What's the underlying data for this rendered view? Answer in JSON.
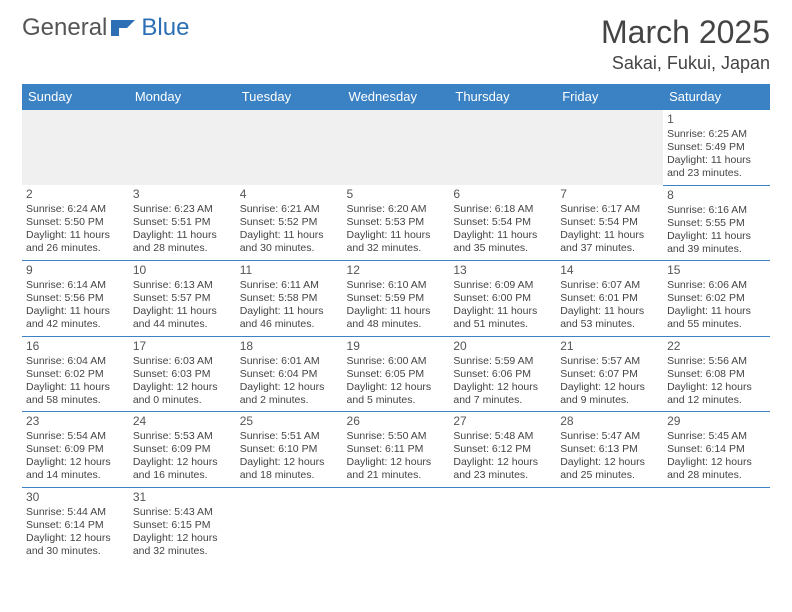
{
  "logo": {
    "general": "General",
    "blue": "Blue"
  },
  "title": "March 2025",
  "location": "Sakai, Fukui, Japan",
  "header_bg": "#3b82c4",
  "days_of_week": [
    "Sunday",
    "Monday",
    "Tuesday",
    "Wednesday",
    "Thursday",
    "Friday",
    "Saturday"
  ],
  "cells": [
    {
      "n": "",
      "blank": true
    },
    {
      "n": "",
      "blank": true
    },
    {
      "n": "",
      "blank": true
    },
    {
      "n": "",
      "blank": true
    },
    {
      "n": "",
      "blank": true
    },
    {
      "n": "",
      "blank": true
    },
    {
      "n": "1",
      "sr": "Sunrise: 6:25 AM",
      "ss": "Sunset: 5:49 PM",
      "d1": "Daylight: 11 hours",
      "d2": "and 23 minutes."
    },
    {
      "n": "2",
      "sr": "Sunrise: 6:24 AM",
      "ss": "Sunset: 5:50 PM",
      "d1": "Daylight: 11 hours",
      "d2": "and 26 minutes."
    },
    {
      "n": "3",
      "sr": "Sunrise: 6:23 AM",
      "ss": "Sunset: 5:51 PM",
      "d1": "Daylight: 11 hours",
      "d2": "and 28 minutes."
    },
    {
      "n": "4",
      "sr": "Sunrise: 6:21 AM",
      "ss": "Sunset: 5:52 PM",
      "d1": "Daylight: 11 hours",
      "d2": "and 30 minutes."
    },
    {
      "n": "5",
      "sr": "Sunrise: 6:20 AM",
      "ss": "Sunset: 5:53 PM",
      "d1": "Daylight: 11 hours",
      "d2": "and 32 minutes."
    },
    {
      "n": "6",
      "sr": "Sunrise: 6:18 AM",
      "ss": "Sunset: 5:54 PM",
      "d1": "Daylight: 11 hours",
      "d2": "and 35 minutes."
    },
    {
      "n": "7",
      "sr": "Sunrise: 6:17 AM",
      "ss": "Sunset: 5:54 PM",
      "d1": "Daylight: 11 hours",
      "d2": "and 37 minutes."
    },
    {
      "n": "8",
      "sr": "Sunrise: 6:16 AM",
      "ss": "Sunset: 5:55 PM",
      "d1": "Daylight: 11 hours",
      "d2": "and 39 minutes."
    },
    {
      "n": "9",
      "sr": "Sunrise: 6:14 AM",
      "ss": "Sunset: 5:56 PM",
      "d1": "Daylight: 11 hours",
      "d2": "and 42 minutes."
    },
    {
      "n": "10",
      "sr": "Sunrise: 6:13 AM",
      "ss": "Sunset: 5:57 PM",
      "d1": "Daylight: 11 hours",
      "d2": "and 44 minutes."
    },
    {
      "n": "11",
      "sr": "Sunrise: 6:11 AM",
      "ss": "Sunset: 5:58 PM",
      "d1": "Daylight: 11 hours",
      "d2": "and 46 minutes."
    },
    {
      "n": "12",
      "sr": "Sunrise: 6:10 AM",
      "ss": "Sunset: 5:59 PM",
      "d1": "Daylight: 11 hours",
      "d2": "and 48 minutes."
    },
    {
      "n": "13",
      "sr": "Sunrise: 6:09 AM",
      "ss": "Sunset: 6:00 PM",
      "d1": "Daylight: 11 hours",
      "d2": "and 51 minutes."
    },
    {
      "n": "14",
      "sr": "Sunrise: 6:07 AM",
      "ss": "Sunset: 6:01 PM",
      "d1": "Daylight: 11 hours",
      "d2": "and 53 minutes."
    },
    {
      "n": "15",
      "sr": "Sunrise: 6:06 AM",
      "ss": "Sunset: 6:02 PM",
      "d1": "Daylight: 11 hours",
      "d2": "and 55 minutes."
    },
    {
      "n": "16",
      "sr": "Sunrise: 6:04 AM",
      "ss": "Sunset: 6:02 PM",
      "d1": "Daylight: 11 hours",
      "d2": "and 58 minutes."
    },
    {
      "n": "17",
      "sr": "Sunrise: 6:03 AM",
      "ss": "Sunset: 6:03 PM",
      "d1": "Daylight: 12 hours",
      "d2": "and 0 minutes."
    },
    {
      "n": "18",
      "sr": "Sunrise: 6:01 AM",
      "ss": "Sunset: 6:04 PM",
      "d1": "Daylight: 12 hours",
      "d2": "and 2 minutes."
    },
    {
      "n": "19",
      "sr": "Sunrise: 6:00 AM",
      "ss": "Sunset: 6:05 PM",
      "d1": "Daylight: 12 hours",
      "d2": "and 5 minutes."
    },
    {
      "n": "20",
      "sr": "Sunrise: 5:59 AM",
      "ss": "Sunset: 6:06 PM",
      "d1": "Daylight: 12 hours",
      "d2": "and 7 minutes."
    },
    {
      "n": "21",
      "sr": "Sunrise: 5:57 AM",
      "ss": "Sunset: 6:07 PM",
      "d1": "Daylight: 12 hours",
      "d2": "and 9 minutes."
    },
    {
      "n": "22",
      "sr": "Sunrise: 5:56 AM",
      "ss": "Sunset: 6:08 PM",
      "d1": "Daylight: 12 hours",
      "d2": "and 12 minutes."
    },
    {
      "n": "23",
      "sr": "Sunrise: 5:54 AM",
      "ss": "Sunset: 6:09 PM",
      "d1": "Daylight: 12 hours",
      "d2": "and 14 minutes."
    },
    {
      "n": "24",
      "sr": "Sunrise: 5:53 AM",
      "ss": "Sunset: 6:09 PM",
      "d1": "Daylight: 12 hours",
      "d2": "and 16 minutes."
    },
    {
      "n": "25",
      "sr": "Sunrise: 5:51 AM",
      "ss": "Sunset: 6:10 PM",
      "d1": "Daylight: 12 hours",
      "d2": "and 18 minutes."
    },
    {
      "n": "26",
      "sr": "Sunrise: 5:50 AM",
      "ss": "Sunset: 6:11 PM",
      "d1": "Daylight: 12 hours",
      "d2": "and 21 minutes."
    },
    {
      "n": "27",
      "sr": "Sunrise: 5:48 AM",
      "ss": "Sunset: 6:12 PM",
      "d1": "Daylight: 12 hours",
      "d2": "and 23 minutes."
    },
    {
      "n": "28",
      "sr": "Sunrise: 5:47 AM",
      "ss": "Sunset: 6:13 PM",
      "d1": "Daylight: 12 hours",
      "d2": "and 25 minutes."
    },
    {
      "n": "29",
      "sr": "Sunrise: 5:45 AM",
      "ss": "Sunset: 6:14 PM",
      "d1": "Daylight: 12 hours",
      "d2": "and 28 minutes."
    },
    {
      "n": "30",
      "sr": "Sunrise: 5:44 AM",
      "ss": "Sunset: 6:14 PM",
      "d1": "Daylight: 12 hours",
      "d2": "and 30 minutes."
    },
    {
      "n": "31",
      "sr": "Sunrise: 5:43 AM",
      "ss": "Sunset: 6:15 PM",
      "d1": "Daylight: 12 hours",
      "d2": "and 32 minutes."
    },
    {
      "n": "",
      "blank": false
    },
    {
      "n": "",
      "blank": false
    },
    {
      "n": "",
      "blank": false
    },
    {
      "n": "",
      "blank": false
    },
    {
      "n": "",
      "blank": false
    }
  ]
}
